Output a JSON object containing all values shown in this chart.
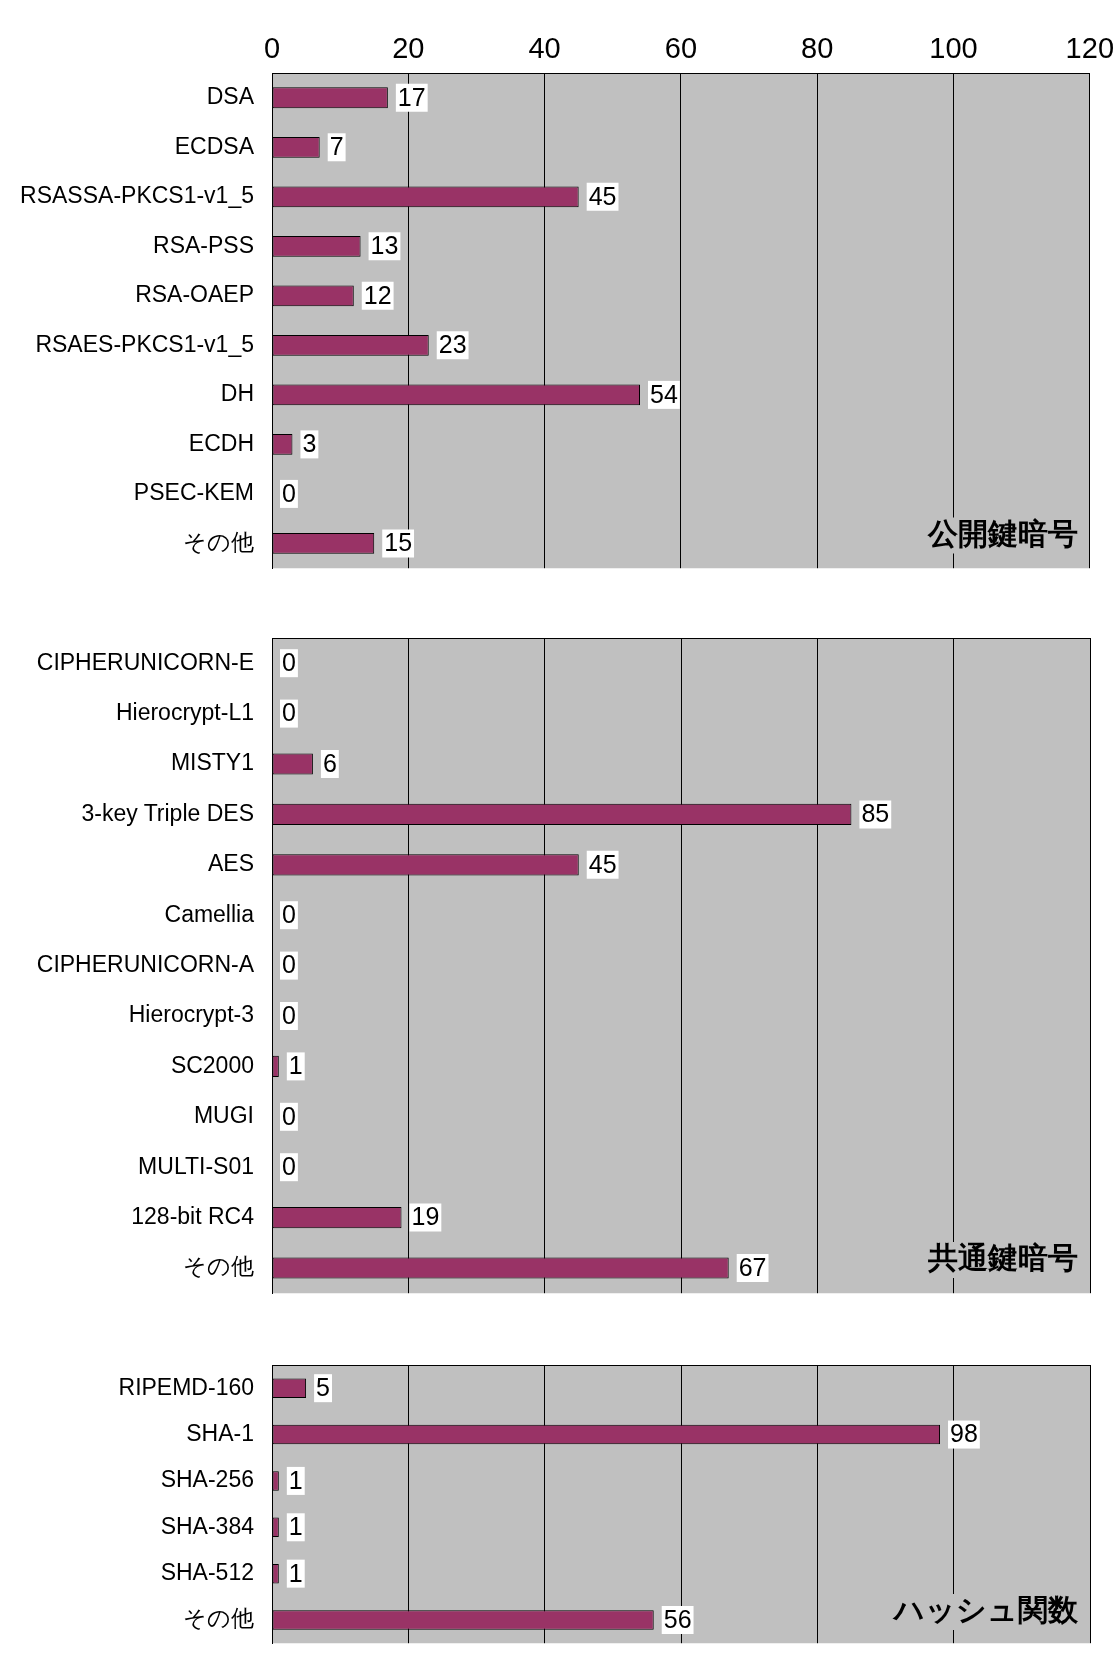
{
  "chart_data": [
    {
      "type": "bar",
      "orientation": "horizontal",
      "title": "公開鍵暗号",
      "categories": [
        "DSA",
        "ECDSA",
        "RSASSA-PKCS1-v1_5",
        "RSA-PSS",
        "RSA-OAEP",
        "RSAES-PKCS1-v1_5",
        "DH",
        "ECDH",
        "PSEC-KEM",
        "その他"
      ],
      "values": [
        17,
        7,
        45,
        13,
        12,
        23,
        54,
        3,
        0,
        15
      ],
      "color": "#993366",
      "xlim": [
        0,
        120
      ],
      "xticks": [
        0,
        20,
        40,
        60,
        80,
        100,
        120
      ],
      "grid": "x",
      "legend": false,
      "data_labels": true
    },
    {
      "type": "bar",
      "orientation": "horizontal",
      "title": "共通鍵暗号",
      "categories": [
        "CIPHERUNICORN-E",
        "Hierocrypt-L1",
        "MISTY1",
        "3-key Triple DES",
        "AES",
        "Camellia",
        "CIPHERUNICORN-A",
        "Hierocrypt-3",
        "SC2000",
        "MUGI",
        "MULTI-S01",
        "128-bit RC4",
        "その他"
      ],
      "values": [
        0,
        0,
        6,
        85,
        45,
        0,
        0,
        0,
        1,
        0,
        0,
        19,
        67
      ],
      "color": "#993366",
      "xlim": [
        0,
        120
      ],
      "xticks": [
        0,
        20,
        40,
        60,
        80,
        100,
        120
      ],
      "grid": "x",
      "legend": false,
      "data_labels": true,
      "tick_labels": "y"
    },
    {
      "type": "bar",
      "orientation": "horizontal",
      "title": "ハッシュ関数",
      "categories": [
        "RIPEMD-160",
        "SHA-1",
        "SHA-256",
        "SHA-384",
        "SHA-512",
        "その他"
      ],
      "values": [
        5,
        98,
        1,
        1,
        1,
        56
      ],
      "color": "#993366",
      "xlim": [
        0,
        120
      ],
      "xticks": [
        0,
        20,
        40,
        60,
        80,
        100,
        120
      ],
      "grid": "x",
      "legend": false,
      "data_labels": true,
      "tick_labels": "y"
    }
  ]
}
